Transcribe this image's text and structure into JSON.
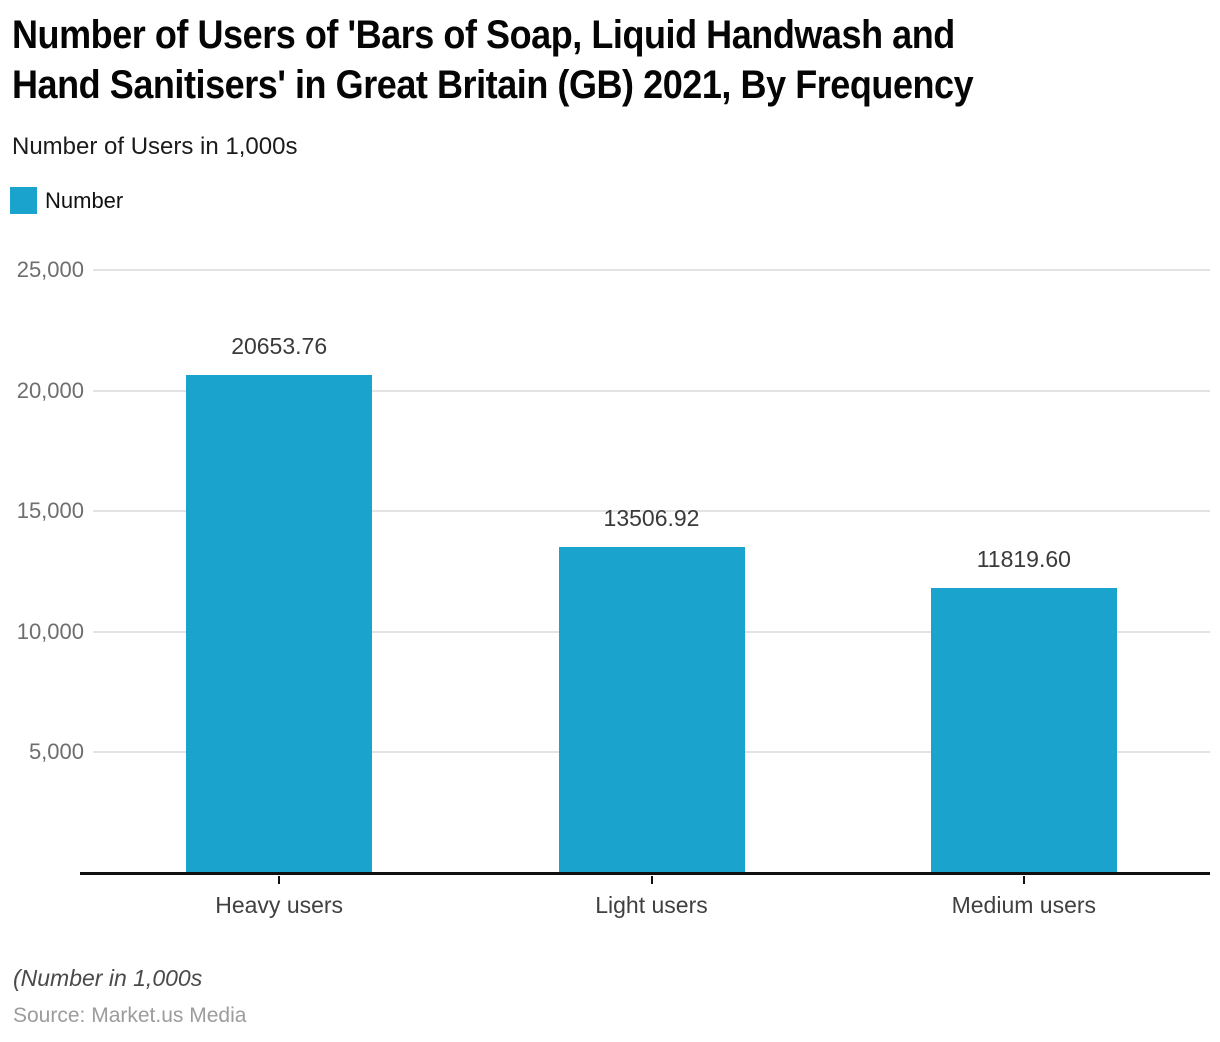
{
  "header": {
    "title_line1": "Number of Users of 'Bars of Soap, Liquid Handwash and",
    "title_line2": "Hand Sanitisers' in Great Britain (GB) 2021, By Frequency",
    "subtitle": "Number of Users in 1,000s"
  },
  "legend": {
    "label": "Number",
    "swatch_color": "#1aa3cd"
  },
  "chart_data": {
    "type": "bar",
    "title": "Number of Users of 'Bars of Soap, Liquid Handwash and Hand Sanitisers' in Great Britain (GB) 2021, By Frequency",
    "subtitle": "Number of Users in 1,000s",
    "categories": [
      "Heavy users",
      "Light users",
      "Medium users"
    ],
    "series": [
      {
        "name": "Number",
        "values": [
          20653.76,
          13506.92,
          11819.6
        ]
      }
    ],
    "value_labels": [
      "20653.76",
      "13506.92",
      "11819.60"
    ],
    "xlabel": "",
    "ylabel": "Number of Users in 1,000s",
    "ylim": [
      0,
      25000
    ],
    "yticks": [
      5000,
      10000,
      15000,
      20000,
      25000
    ],
    "ytick_labels": [
      "5,000",
      "10,000",
      "15,000",
      "20,000",
      "25,000"
    ],
    "grid": "horizontal",
    "legend_position": "top-left",
    "bar_color": "#1aa3cd",
    "gridline_color": "#e3e3e3",
    "axis_color": "#111111"
  },
  "footer": {
    "note": "(Number in 1,000s",
    "source": "Source: Market.us Media"
  }
}
